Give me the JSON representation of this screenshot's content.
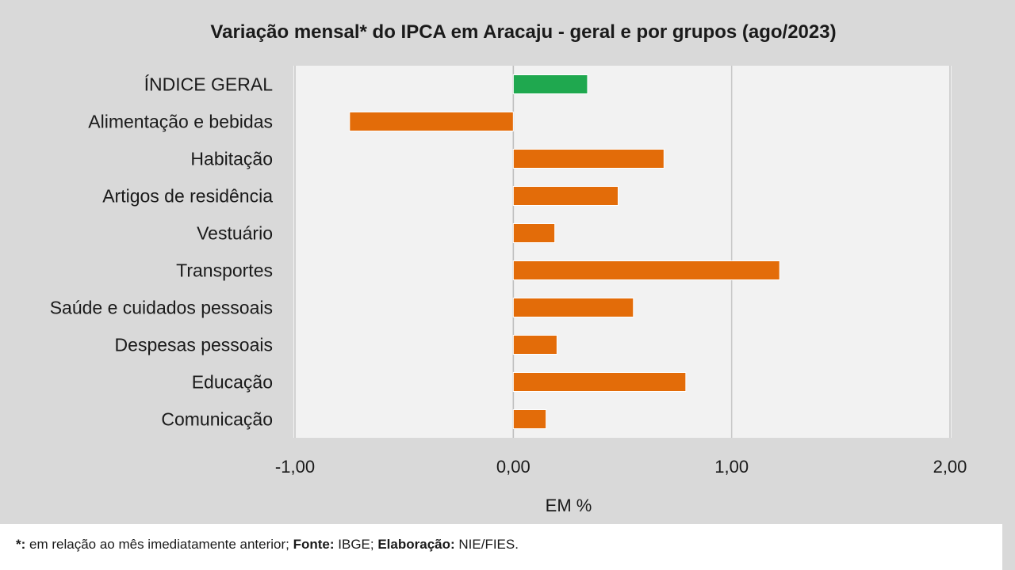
{
  "chart_data": {
    "type": "bar",
    "orientation": "horizontal",
    "title": "Variação  mensal*  do IPCA em Aracaju  - geral e por grupos  (ago/2023)",
    "xlabel": "EM %",
    "xlim": [
      -1.0,
      2.0
    ],
    "ticks": [
      -1.0,
      0.0,
      1.0,
      2.0
    ],
    "tick_labels": [
      "-1,00",
      "0,00",
      "1,00",
      "2,00"
    ],
    "categories": [
      "ÍNDICE GERAL",
      "Alimentação e bebidas",
      "Habitação",
      "Artigos de residência",
      "Vestuário",
      "Transportes",
      "Saúde e cuidados pessoais",
      "Despesas pessoais",
      "Educação",
      "Comunicação"
    ],
    "values": [
      0.34,
      -0.75,
      0.69,
      0.48,
      0.19,
      1.22,
      0.55,
      0.2,
      0.79,
      0.15
    ],
    "colors": [
      "#1fa84f",
      "#e36c09",
      "#e36c09",
      "#e36c09",
      "#e36c09",
      "#e36c09",
      "#e36c09",
      "#e36c09",
      "#e36c09",
      "#e36c09"
    ],
    "grid": "vertical",
    "plot_background": "#f2f2f2"
  },
  "footnote": {
    "star_label": "*:",
    "star_text": " em relação ao mês imediatamente  anterior; ",
    "source_label": "Fonte:",
    "source_text": " IBGE; ",
    "author_label": "Elaboração:",
    "author_text": " NIE/FIES."
  }
}
